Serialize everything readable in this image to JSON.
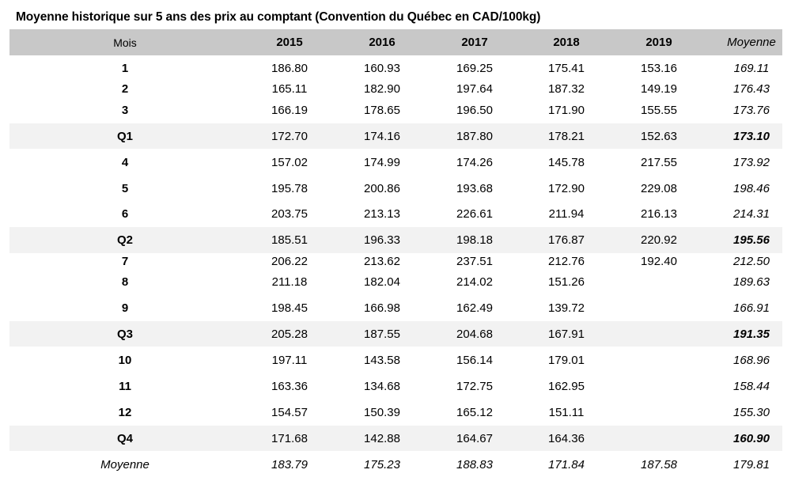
{
  "title": "Moyenne historique sur 5 ans des prix au comptant (Convention du Québec en CAD/100kg)",
  "columns": [
    "Mois",
    "2015",
    "2016",
    "2017",
    "2018",
    "2019",
    "Moyenne"
  ],
  "rows": [
    {
      "label": "1",
      "type": "month",
      "values": [
        "186.80",
        "160.93",
        "169.25",
        "175.41",
        "153.16",
        "169.11"
      ]
    },
    {
      "label": "2",
      "type": "month",
      "values": [
        "165.11",
        "182.90",
        "197.64",
        "187.32",
        "149.19",
        "176.43"
      ]
    },
    {
      "label": "3",
      "type": "month",
      "values": [
        "166.19",
        "178.65",
        "196.50",
        "171.90",
        "155.55",
        "173.76"
      ]
    },
    {
      "label": "Q1",
      "type": "quarter",
      "values": [
        "172.70",
        "174.16",
        "187.80",
        "178.21",
        "152.63",
        "173.10"
      ]
    },
    {
      "label": "4",
      "type": "month",
      "values": [
        "157.02",
        "174.99",
        "174.26",
        "145.78",
        "217.55",
        "173.92"
      ]
    },
    {
      "label": "5",
      "type": "month",
      "values": [
        "195.78",
        "200.86",
        "193.68",
        "172.90",
        "229.08",
        "198.46"
      ]
    },
    {
      "label": "6",
      "type": "month",
      "values": [
        "203.75",
        "213.13",
        "226.61",
        "211.94",
        "216.13",
        "214.31"
      ]
    },
    {
      "label": "Q2",
      "type": "quarter",
      "values": [
        "185.51",
        "196.33",
        "198.18",
        "176.87",
        "220.92",
        "195.56"
      ]
    },
    {
      "label": "7",
      "type": "month",
      "values": [
        "206.22",
        "213.62",
        "237.51",
        "212.76",
        "192.40",
        "212.50"
      ]
    },
    {
      "label": "8",
      "type": "month",
      "values": [
        "211.18",
        "182.04",
        "214.02",
        "151.26",
        "",
        "189.63"
      ]
    },
    {
      "label": "9",
      "type": "month",
      "values": [
        "198.45",
        "166.98",
        "162.49",
        "139.72",
        "",
        "166.91"
      ]
    },
    {
      "label": "Q3",
      "type": "quarter",
      "values": [
        "205.28",
        "187.55",
        "204.68",
        "167.91",
        "",
        "191.35"
      ]
    },
    {
      "label": "10",
      "type": "month",
      "values": [
        "197.11",
        "143.58",
        "156.14",
        "179.01",
        "",
        "168.96"
      ]
    },
    {
      "label": "11",
      "type": "month",
      "values": [
        "163.36",
        "134.68",
        "172.75",
        "162.95",
        "",
        "158.44"
      ]
    },
    {
      "label": "12",
      "type": "month",
      "values": [
        "154.57",
        "150.39",
        "165.12",
        "151.11",
        "",
        "155.30"
      ]
    },
    {
      "label": "Q4",
      "type": "quarter",
      "values": [
        "171.68",
        "142.88",
        "164.67",
        "164.36",
        "",
        "160.90"
      ]
    },
    {
      "label": "Moyenne",
      "type": "average",
      "values": [
        "183.79",
        "175.23",
        "188.83",
        "171.84",
        "187.58",
        "179.81"
      ]
    }
  ],
  "colors": {
    "header_bg": "#c8c8c8",
    "band_bg": "#f2f2f2"
  }
}
